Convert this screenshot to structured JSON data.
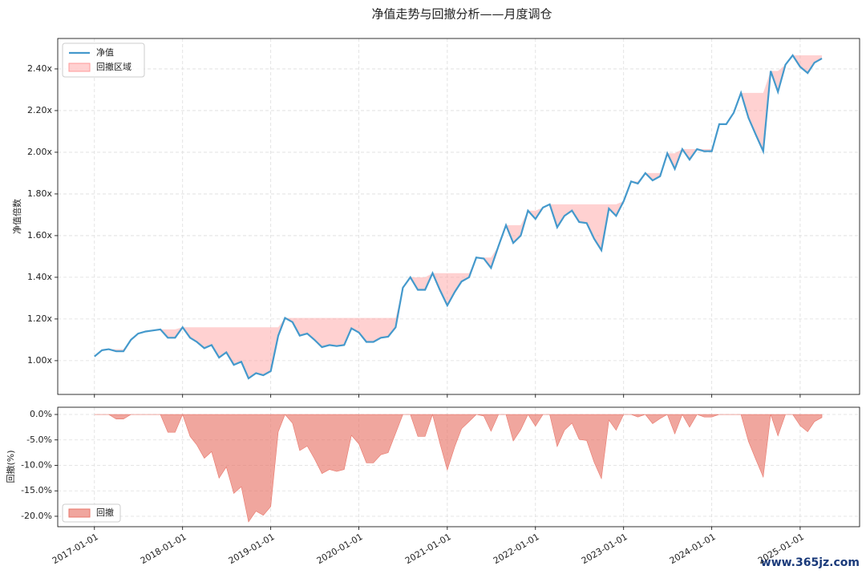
{
  "chart_data": [
    {
      "type": "line",
      "title": "净值走势与回撤分析——月度调仓",
      "ylabel": "净值倍数",
      "x": [
        "2017-01-01",
        "2017-02-01",
        "2017-03-01",
        "2017-04-01",
        "2017-05-01",
        "2017-06-01",
        "2017-07-01",
        "2017-08-01",
        "2017-09-01",
        "2017-10-01",
        "2017-11-01",
        "2017-12-01",
        "2018-01-01",
        "2018-02-01",
        "2018-03-01",
        "2018-04-01",
        "2018-05-01",
        "2018-06-01",
        "2018-07-01",
        "2018-08-01",
        "2018-09-01",
        "2018-10-01",
        "2018-11-01",
        "2018-12-01",
        "2019-01-01",
        "2019-02-01",
        "2019-03-01",
        "2019-04-01",
        "2019-05-01",
        "2019-06-01",
        "2019-07-01",
        "2019-08-01",
        "2019-09-01",
        "2019-10-01",
        "2019-11-01",
        "2019-12-01",
        "2020-01-01",
        "2020-02-01",
        "2020-03-01",
        "2020-04-01",
        "2020-05-01",
        "2020-06-01",
        "2020-07-01",
        "2020-08-01",
        "2020-09-01",
        "2020-10-01",
        "2020-11-01",
        "2020-12-01",
        "2021-01-01",
        "2021-02-01",
        "2021-03-01",
        "2021-04-01",
        "2021-05-01",
        "2021-06-01",
        "2021-07-01",
        "2021-08-01",
        "2021-09-01",
        "2021-10-01",
        "2021-11-01",
        "2021-12-01",
        "2022-01-01",
        "2022-02-01",
        "2022-03-01",
        "2022-04-01",
        "2022-05-01",
        "2022-06-01",
        "2022-07-01",
        "2022-08-01",
        "2022-09-01",
        "2022-10-01",
        "2022-11-01",
        "2022-12-01",
        "2023-01-01",
        "2023-02-01",
        "2023-03-01",
        "2023-04-01",
        "2023-05-01",
        "2023-06-01",
        "2023-07-01",
        "2023-08-01",
        "2023-09-01",
        "2023-10-01",
        "2023-11-01",
        "2023-12-01",
        "2024-01-01",
        "2024-02-01",
        "2024-03-01",
        "2024-04-01",
        "2024-05-01",
        "2024-06-01",
        "2024-07-01",
        "2024-08-01",
        "2024-09-01",
        "2024-10-01",
        "2024-11-01",
        "2024-12-01",
        "2025-01-01",
        "2025-02-01",
        "2025-03-01",
        "2025-04-01"
      ],
      "series": [
        {
          "name": "净值",
          "color": "#4499cc",
          "values": [
            1.02,
            1.05,
            1.055,
            1.045,
            1.045,
            1.1,
            1.13,
            1.14,
            1.145,
            1.15,
            1.11,
            1.11,
            1.16,
            1.11,
            1.09,
            1.06,
            1.075,
            1.015,
            1.04,
            0.98,
            0.995,
            0.915,
            0.94,
            0.93,
            0.95,
            1.12,
            1.205,
            1.185,
            1.12,
            1.13,
            1.1,
            1.065,
            1.075,
            1.07,
            1.075,
            1.155,
            1.135,
            1.09,
            1.09,
            1.11,
            1.115,
            1.16,
            1.35,
            1.4,
            1.34,
            1.34,
            1.42,
            1.34,
            1.265,
            1.33,
            1.38,
            1.4,
            1.495,
            1.49,
            1.445,
            1.55,
            1.65,
            1.565,
            1.6,
            1.72,
            1.68,
            1.735,
            1.75,
            1.64,
            1.695,
            1.72,
            1.665,
            1.66,
            1.585,
            1.53,
            1.73,
            1.695,
            1.765,
            1.86,
            1.85,
            1.9,
            1.865,
            1.885,
            1.995,
            1.92,
            2.015,
            1.965,
            2.015,
            2.005,
            2.005,
            2.135,
            2.135,
            2.19,
            2.285,
            2.165,
            2.085,
            2.005,
            2.39,
            2.29,
            2.42,
            2.465,
            2.41,
            2.38,
            2.43,
            2.45
          ]
        }
      ],
      "drawdown_area": {
        "name": "回撤区域",
        "color": "#ff9999"
      },
      "xlim": [
        "2016-08-02",
        "2025-09-04"
      ],
      "xticks": [
        "2017-01-01",
        "2018-01-01",
        "2019-01-01",
        "2020-01-01",
        "2021-01-01",
        "2022-01-01",
        "2023-01-01",
        "2024-01-01",
        "2025-01-01"
      ],
      "ylim": [
        0.838,
        2.546
      ],
      "yticks": [
        {
          "value": 1.0,
          "label": "1.00x"
        },
        {
          "value": 1.2,
          "label": "1.20x"
        },
        {
          "value": 1.4,
          "label": "1.40x"
        },
        {
          "value": 1.6,
          "label": "1.60x"
        },
        {
          "value": 1.8,
          "label": "1.80x"
        },
        {
          "value": 2.0,
          "label": "2.00x"
        },
        {
          "value": 2.2,
          "label": "2.20x"
        },
        {
          "value": 2.4,
          "label": "2.40x"
        }
      ],
      "grid": true,
      "legend": "upper left"
    },
    {
      "type": "area",
      "ylabel": "回撤(%)",
      "name": "回撤",
      "color": "#e8766a",
      "values": [
        0,
        0,
        0,
        -0.9,
        -0.9,
        0,
        0,
        0,
        0,
        0,
        -3.5,
        -3.5,
        0,
        -4.3,
        -6.0,
        -8.6,
        -7.3,
        -12.5,
        -10.3,
        -15.5,
        -14.2,
        -21.1,
        -19.0,
        -19.8,
        -18.1,
        -3.4,
        0,
        -1.7,
        -7.1,
        -6.2,
        -8.7,
        -11.6,
        -10.8,
        -11.2,
        -10.8,
        -4.1,
        -5.8,
        -9.5,
        -9.5,
        -7.9,
        -7.5,
        -3.7,
        0,
        0,
        -4.3,
        -4.3,
        0,
        -5.6,
        -10.9,
        -6.3,
        -2.8,
        -1.4,
        0,
        -0.3,
        -3.3,
        0,
        0,
        -5.2,
        -3.0,
        0,
        -2.3,
        0,
        0,
        -6.3,
        -3.1,
        -1.7,
        -4.9,
        -5.1,
        -9.4,
        -12.6,
        -1.1,
        -3.1,
        0,
        0,
        -0.5,
        0,
        -1.8,
        -0.8,
        0,
        -3.8,
        0,
        -2.5,
        0,
        -0.5,
        -0.5,
        0,
        0,
        0,
        0,
        -5.3,
        -8.8,
        -12.3,
        0,
        -4.2,
        0,
        0,
        -2.2,
        -3.4,
        -1.4,
        -0.6
      ],
      "xlim": [
        "2016-08-02",
        "2025-09-04"
      ],
      "xticks": [
        "2017-01-01",
        "2018-01-01",
        "2019-01-01",
        "2020-01-01",
        "2021-01-01",
        "2022-01-01",
        "2023-01-01",
        "2024-01-01",
        "2025-01-01"
      ],
      "ylim": [
        -22.05,
        1.42
      ],
      "yticks": [
        {
          "value": -20,
          "label": "-20.0%"
        },
        {
          "value": -15,
          "label": "-15.0%"
        },
        {
          "value": -10,
          "label": "-10.0%"
        },
        {
          "value": -5,
          "label": "-5.0%"
        },
        {
          "value": 0,
          "label": "0.0%"
        }
      ],
      "grid": true,
      "legend": "lower left"
    }
  ],
  "watermark": "www.365jz.com"
}
